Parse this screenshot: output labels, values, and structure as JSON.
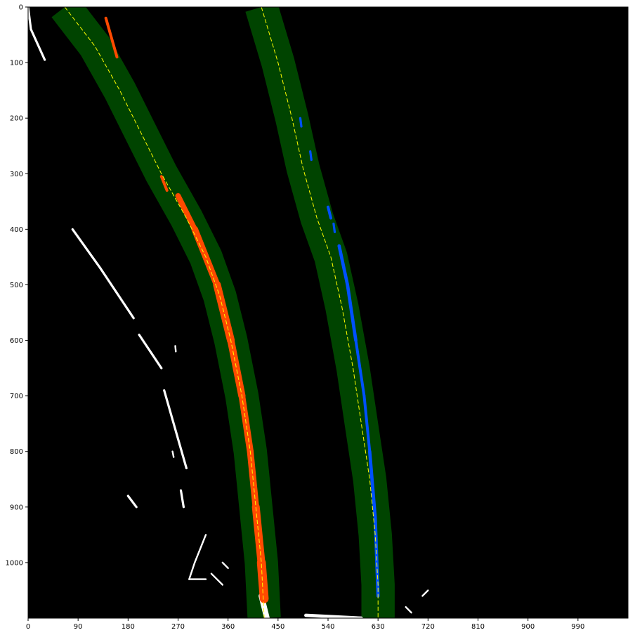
{
  "chart_data": {
    "type": "image",
    "title": "",
    "xlabel": "",
    "ylabel": "",
    "xlim": [
      0,
      1080
    ],
    "ylim": [
      1100,
      0
    ],
    "grid": false,
    "x_ticks": [
      {
        "value": 0,
        "label": "0"
      },
      {
        "value": 90,
        "label": "90"
      },
      {
        "value": 180,
        "label": "180"
      },
      {
        "value": 270,
        "label": "270"
      },
      {
        "value": 360,
        "label": "360"
      },
      {
        "value": 450,
        "label": "450"
      },
      {
        "value": 540,
        "label": "540"
      },
      {
        "value": 630,
        "label": "630"
      },
      {
        "value": 720,
        "label": "720"
      },
      {
        "value": 810,
        "label": "810"
      },
      {
        "value": 900,
        "label": "900"
      },
      {
        "value": 990,
        "label": "990"
      }
    ],
    "y_ticks": [
      {
        "value": 0,
        "label": "0"
      },
      {
        "value": 100,
        "label": "100"
      },
      {
        "value": 200,
        "label": "200"
      },
      {
        "value": 300,
        "label": "300"
      },
      {
        "value": 400,
        "label": "400"
      },
      {
        "value": 500,
        "label": "500"
      },
      {
        "value": 600,
        "label": "600"
      },
      {
        "value": 700,
        "label": "700"
      },
      {
        "value": 800,
        "label": "800"
      },
      {
        "value": 900,
        "label": "900"
      },
      {
        "value": 1000,
        "label": "1000"
      }
    ],
    "colors": {
      "background": "#000000",
      "search_window": "#004400",
      "fit_line": "#ffff00",
      "left_lane_pixels": "#ff4a00",
      "right_lane_pixels": "#0050ff",
      "other_pixels": "#ffffff"
    },
    "search_window_halfwidth": 30,
    "left_lane_fit": {
      "points": [
        [
          66,
          0
        ],
        [
          120,
          70
        ],
        [
          165,
          150
        ],
        [
          205,
          230
        ],
        [
          240,
          300
        ],
        [
          285,
          380
        ],
        [
          320,
          450
        ],
        [
          345,
          520
        ],
        [
          365,
          600
        ],
        [
          385,
          700
        ],
        [
          400,
          800
        ],
        [
          410,
          900
        ],
        [
          420,
          1000
        ],
        [
          425,
          1100
        ]
      ]
    },
    "right_lane_fit": {
      "points": [
        [
          420,
          0
        ],
        [
          450,
          100
        ],
        [
          475,
          200
        ],
        [
          495,
          290
        ],
        [
          520,
          380
        ],
        [
          545,
          450
        ],
        [
          565,
          540
        ],
        [
          585,
          650
        ],
        [
          600,
          750
        ],
        [
          615,
          850
        ],
        [
          625,
          950
        ],
        [
          630,
          1040
        ],
        [
          630,
          1100
        ]
      ]
    },
    "left_lane_pixels": [
      {
        "start": [
          140,
          20
        ],
        "end": [
          160,
          90
        ],
        "width": 5
      },
      {
        "start": [
          240,
          305
        ],
        "end": [
          250,
          330
        ],
        "width": 5
      },
      {
        "start": [
          270,
          340
        ],
        "end": [
          300,
          400
        ],
        "width": 10
      },
      {
        "start": [
          300,
          400
        ],
        "end": [
          340,
          500
        ],
        "width": 12
      },
      {
        "start": [
          340,
          500
        ],
        "end": [
          365,
          600
        ],
        "width": 14
      },
      {
        "start": [
          365,
          600
        ],
        "end": [
          385,
          700
        ],
        "width": 13
      },
      {
        "start": [
          385,
          700
        ],
        "end": [
          400,
          800
        ],
        "width": 12
      },
      {
        "start": [
          400,
          800
        ],
        "end": [
          410,
          900
        ],
        "width": 12
      },
      {
        "start": [
          410,
          900
        ],
        "end": [
          420,
          1000
        ],
        "width": 14
      },
      {
        "start": [
          420,
          1000
        ],
        "end": [
          425,
          1065
        ],
        "width": 16
      }
    ],
    "right_lane_pixels": [
      {
        "start": [
          490,
          200
        ],
        "end": [
          492,
          215
        ],
        "width": 4
      },
      {
        "start": [
          508,
          260
        ],
        "end": [
          510,
          275
        ],
        "width": 4
      },
      {
        "start": [
          540,
          360
        ],
        "end": [
          545,
          380
        ],
        "width": 5
      },
      {
        "start": [
          550,
          390
        ],
        "end": [
          552,
          405
        ],
        "width": 4
      },
      {
        "start": [
          560,
          430
        ],
        "end": [
          575,
          500
        ],
        "width": 6
      },
      {
        "start": [
          575,
          500
        ],
        "end": [
          590,
          600
        ],
        "width": 6
      },
      {
        "start": [
          590,
          600
        ],
        "end": [
          605,
          700
        ],
        "width": 5
      },
      {
        "start": [
          605,
          700
        ],
        "end": [
          615,
          800
        ],
        "width": 5
      },
      {
        "start": [
          615,
          800
        ],
        "end": [
          625,
          920
        ],
        "width": 6
      },
      {
        "start": [
          625,
          920
        ],
        "end": [
          630,
          1060
        ],
        "width": 6
      }
    ],
    "other_pixels": [
      {
        "start": [
          0,
          0
        ],
        "end": [
          5,
          40
        ],
        "width": 4
      },
      {
        "start": [
          5,
          40
        ],
        "end": [
          30,
          95
        ],
        "width": 4
      },
      {
        "start": [
          80,
          400
        ],
        "end": [
          130,
          470
        ],
        "width": 4
      },
      {
        "start": [
          130,
          470
        ],
        "end": [
          190,
          560
        ],
        "width": 4
      },
      {
        "start": [
          200,
          590
        ],
        "end": [
          240,
          650
        ],
        "width": 4
      },
      {
        "start": [
          245,
          690
        ],
        "end": [
          285,
          830
        ],
        "width": 4
      },
      {
        "start": [
          275,
          870
        ],
        "end": [
          280,
          900
        ],
        "width": 4
      },
      {
        "start": [
          180,
          880
        ],
        "end": [
          195,
          900
        ],
        "width": 4
      },
      {
        "start": [
          320,
          950
        ],
        "end": [
          300,
          1000
        ],
        "width": 3
      },
      {
        "start": [
          300,
          1000
        ],
        "end": [
          290,
          1030
        ],
        "width": 3
      },
      {
        "start": [
          290,
          1030
        ],
        "end": [
          320,
          1030
        ],
        "width": 3
      },
      {
        "start": [
          330,
          1020
        ],
        "end": [
          350,
          1040
        ],
        "width": 3
      },
      {
        "start": [
          350,
          1000
        ],
        "end": [
          360,
          1010
        ],
        "width": 3
      },
      {
        "start": [
          420,
          1060
        ],
        "end": [
          430,
          1100
        ],
        "width": 10
      },
      {
        "start": [
          500,
          1095
        ],
        "end": [
          600,
          1100
        ],
        "width": 6
      },
      {
        "start": [
          680,
          1080
        ],
        "end": [
          690,
          1090
        ],
        "width": 3
      },
      {
        "start": [
          710,
          1060
        ],
        "end": [
          720,
          1050
        ],
        "width": 3
      },
      {
        "start": [
          260,
          800
        ],
        "end": [
          262,
          810
        ],
        "width": 3
      },
      {
        "start": [
          265,
          610
        ],
        "end": [
          266,
          620
        ],
        "width": 3
      }
    ]
  }
}
